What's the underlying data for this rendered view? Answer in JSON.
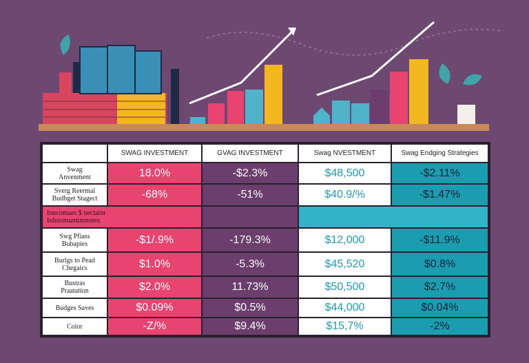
{
  "table": {
    "header": [
      "SWAG INVESTMENT",
      "GVAG INVESTMENT",
      "Swag NVESTMENT",
      "Swag Endging Strategies"
    ],
    "rows": [
      {
        "label": "Swag\nAnvenment",
        "cells": [
          "18.0%",
          "-$2.3%",
          "$48,500",
          "-$2.11%"
        ]
      },
      {
        "label": "Sverg Reermal\nBudbget Stagect",
        "cells": [
          "-68%",
          "-51%",
          "$40.9/%",
          "-$1.47%"
        ]
      },
      {
        "label": "Swg Pfiass\nBubapies",
        "cells": [
          "-$1/.9%",
          "-179.3%",
          "$12,000",
          "-$11.9%"
        ]
      },
      {
        "label": "Burlgs to Pead\nChegaics",
        "cells": [
          "$1.0%",
          "-5.3%",
          "$45,520",
          "$0.8%"
        ]
      },
      {
        "label": "Bustras\nPraatation",
        "cells": [
          "$2.0%",
          "11.73%",
          "$50,500",
          "$2.7%"
        ]
      },
      {
        "label": "Budges Saves",
        "cells": [
          "$0.09%",
          "$0.5%",
          "$44,000",
          "$0.04%"
        ]
      },
      {
        "label": "Color",
        "cells": [
          "-Z/%",
          "$9.4%",
          "$15,7%",
          "-2%"
        ]
      }
    ],
    "note": "Inncomaes $ nectaint\nInfeiomumimnoten"
  }
}
